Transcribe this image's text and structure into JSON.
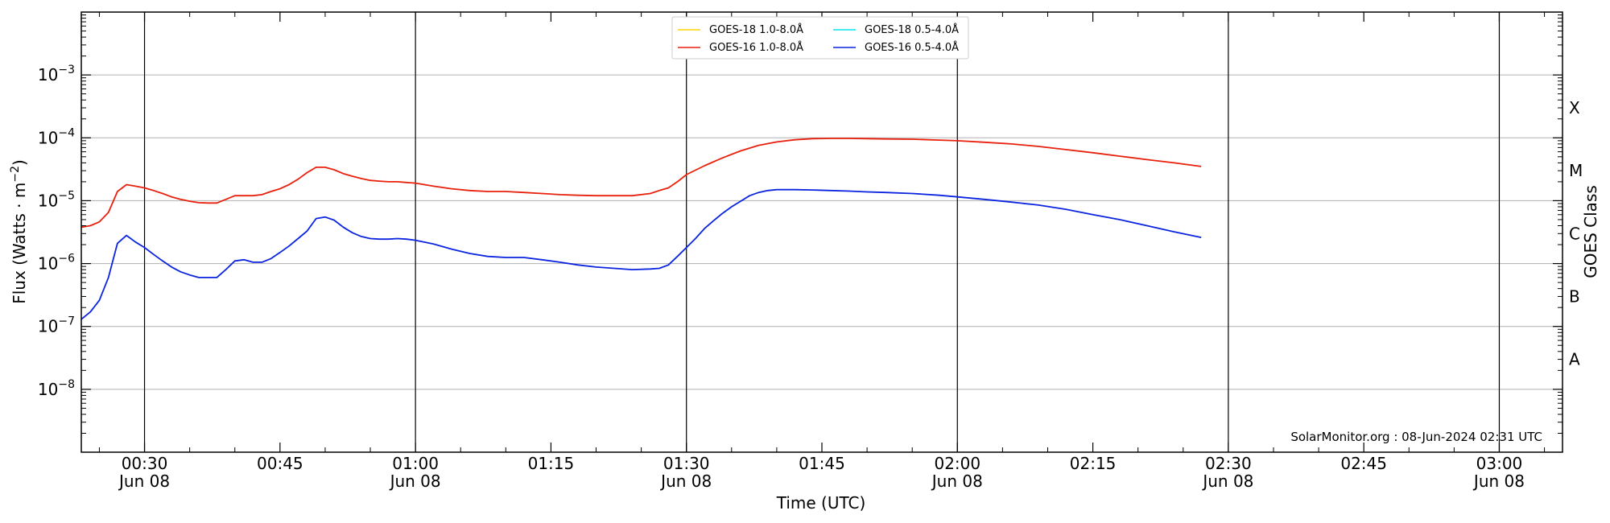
{
  "chart_data": {
    "type": "line",
    "title": "",
    "xlabel": "Time (UTC)",
    "ylabel": "Flux (Watts · m",
    "ylabel_sup": "−2",
    "ylabel_close": ")",
    "y2label": "GOES Class",
    "yscale": "log",
    "ylim": [
      1e-09,
      0.01
    ],
    "xlim": [
      "2024-06-08 00:23",
      "2024-06-08 03:07"
    ],
    "y_ticks": [
      {
        "value": 1e-08,
        "base": "10",
        "exp": "−8"
      },
      {
        "value": 1e-07,
        "base": "10",
        "exp": "−7"
      },
      {
        "value": 1e-06,
        "base": "10",
        "exp": "−6"
      },
      {
        "value": 1e-05,
        "base": "10",
        "exp": "−5"
      },
      {
        "value": 0.0001,
        "base": "10",
        "exp": "−4"
      },
      {
        "value": 0.001,
        "base": "10",
        "exp": "−3"
      }
    ],
    "x_ticks": [
      {
        "time": "00:30",
        "label": "00:30",
        "date": "Jun 08"
      },
      {
        "time": "00:45",
        "label": "00:45",
        "date": ""
      },
      {
        "time": "01:00",
        "label": "01:00",
        "date": "Jun 08"
      },
      {
        "time": "01:15",
        "label": "01:15",
        "date": ""
      },
      {
        "time": "01:30",
        "label": "01:30",
        "date": "Jun 08"
      },
      {
        "time": "01:45",
        "label": "01:45",
        "date": ""
      },
      {
        "time": "02:00",
        "label": "02:00",
        "date": "Jun 08"
      },
      {
        "time": "02:15",
        "label": "02:15",
        "date": ""
      },
      {
        "time": "02:30",
        "label": "02:30",
        "date": "Jun 08"
      },
      {
        "time": "02:45",
        "label": "02:45",
        "date": ""
      },
      {
        "time": "03:00",
        "label": "03:00",
        "date": "Jun 08"
      }
    ],
    "half_hour_markers": [
      "00:30",
      "01:00",
      "01:30",
      "02:00",
      "02:30",
      "03:00"
    ],
    "goes_classes": [
      {
        "label": "A",
        "flux": 3e-08
      },
      {
        "label": "B",
        "flux": 3e-07
      },
      {
        "label": "C",
        "flux": 3e-06
      },
      {
        "label": "M",
        "flux": 3e-05
      },
      {
        "label": "X",
        "flux": 0.0003
      }
    ],
    "grid": true,
    "legend_placement": "top-center",
    "annotation": "SolarMonitor.org : 08-Jun-2024 02:31 UTC",
    "series": [
      {
        "name": "GOES-18 1.0-8.0Å",
        "color": "#ffd400",
        "x": [],
        "y": []
      },
      {
        "name": "GOES-18 0.5-4.0Å",
        "color": "#00e5ee",
        "x": [],
        "y": []
      },
      {
        "name": "GOES-16 1.0-8.0Å",
        "color": "#e8200c",
        "x": [
          "00:23",
          "00:24",
          "00:25",
          "00:26",
          "00:27",
          "00:28",
          "00:29",
          "00:30",
          "00:31",
          "00:32",
          "00:33",
          "00:34",
          "00:35",
          "00:36",
          "00:37",
          "00:38",
          "00:39",
          "00:40",
          "00:41",
          "00:42",
          "00:43",
          "00:44",
          "00:45",
          "00:46",
          "00:47",
          "00:48",
          "00:49",
          "00:50",
          "00:51",
          "00:52",
          "00:53",
          "00:54",
          "00:55",
          "00:56",
          "00:57",
          "00:58",
          "00:59",
          "01:00",
          "01:02",
          "01:04",
          "01:06",
          "01:08",
          "01:10",
          "01:12",
          "01:14",
          "01:16",
          "01:18",
          "01:20",
          "01:22",
          "01:24",
          "01:26",
          "01:27",
          "01:28",
          "01:29",
          "01:30",
          "01:32",
          "01:34",
          "01:36",
          "01:38",
          "01:40",
          "01:42",
          "01:44",
          "01:46",
          "01:48",
          "01:50",
          "01:52",
          "01:55",
          "01:58",
          "02:00",
          "02:03",
          "02:06",
          "02:09",
          "02:12",
          "02:15",
          "02:18",
          "02:21",
          "02:24",
          "02:27"
        ],
        "y": [
          3.8e-06,
          4e-06,
          4.6e-06,
          6.5e-06,
          1.4e-05,
          1.8e-05,
          1.7e-05,
          1.6e-05,
          1.45e-05,
          1.3e-05,
          1.15e-05,
          1.05e-05,
          9.8e-06,
          9.3e-06,
          9.2e-06,
          9.2e-06,
          1.05e-05,
          1.2e-05,
          1.2e-05,
          1.2e-05,
          1.25e-05,
          1.4e-05,
          1.55e-05,
          1.8e-05,
          2.2e-05,
          2.8e-05,
          3.4e-05,
          3.4e-05,
          3.1e-05,
          2.7e-05,
          2.45e-05,
          2.25e-05,
          2.1e-05,
          2.05e-05,
          2e-05,
          2e-05,
          1.95e-05,
          1.9e-05,
          1.7e-05,
          1.55e-05,
          1.45e-05,
          1.4e-05,
          1.4e-05,
          1.35e-05,
          1.3e-05,
          1.25e-05,
          1.22e-05,
          1.2e-05,
          1.2e-05,
          1.2e-05,
          1.3e-05,
          1.45e-05,
          1.6e-05,
          2e-05,
          2.6e-05,
          3.6e-05,
          4.8e-05,
          6.2e-05,
          7.6e-05,
          8.6e-05,
          9.3e-05,
          9.7e-05,
          9.8e-05,
          9.8e-05,
          9.7e-05,
          9.6e-05,
          9.5e-05,
          9.2e-05,
          9e-05,
          8.5e-05,
          8e-05,
          7.3e-05,
          6.5e-05,
          5.8e-05,
          5.1e-05,
          4.5e-05,
          4e-05,
          3.5e-05
        ]
      },
      {
        "name": "GOES-16 0.5-4.0Å",
        "color": "#0a24e0",
        "x": [
          "00:23",
          "00:24",
          "00:25",
          "00:26",
          "00:27",
          "00:28",
          "00:29",
          "00:30",
          "00:31",
          "00:32",
          "00:33",
          "00:34",
          "00:35",
          "00:36",
          "00:37",
          "00:38",
          "00:39",
          "00:40",
          "00:41",
          "00:42",
          "00:43",
          "00:44",
          "00:45",
          "00:46",
          "00:47",
          "00:48",
          "00:49",
          "00:50",
          "00:51",
          "00:52",
          "00:53",
          "00:54",
          "00:55",
          "00:56",
          "00:57",
          "00:58",
          "00:59",
          "01:00",
          "01:02",
          "01:04",
          "01:06",
          "01:08",
          "01:10",
          "01:12",
          "01:14",
          "01:16",
          "01:18",
          "01:20",
          "01:22",
          "01:24",
          "01:26",
          "01:27",
          "01:28",
          "01:29",
          "01:30",
          "01:31",
          "01:32",
          "01:33",
          "01:34",
          "01:35",
          "01:36",
          "01:37",
          "01:38",
          "01:39",
          "01:40",
          "01:42",
          "01:44",
          "01:46",
          "01:48",
          "01:50",
          "01:52",
          "01:55",
          "01:58",
          "02:00",
          "02:03",
          "02:06",
          "02:09",
          "02:12",
          "02:15",
          "02:18",
          "02:21",
          "02:24",
          "02:27"
        ],
        "y": [
          1.3e-07,
          1.7e-07,
          2.6e-07,
          6e-07,
          2.1e-06,
          2.8e-06,
          2.2e-06,
          1.8e-06,
          1.4e-06,
          1.1e-06,
          8.8e-07,
          7.4e-07,
          6.6e-07,
          6e-07,
          6e-07,
          6e-07,
          8e-07,
          1.1e-06,
          1.15e-06,
          1.05e-06,
          1.05e-06,
          1.2e-06,
          1.5e-06,
          1.9e-06,
          2.5e-06,
          3.3e-06,
          5.2e-06,
          5.5e-06,
          4.9e-06,
          3.8e-06,
          3.1e-06,
          2.7e-06,
          2.5e-06,
          2.45e-06,
          2.45e-06,
          2.5e-06,
          2.45e-06,
          2.35e-06,
          2.05e-06,
          1.7e-06,
          1.45e-06,
          1.3e-06,
          1.25e-06,
          1.25e-06,
          1.15e-06,
          1.05e-06,
          9.5e-07,
          8.8e-07,
          8.4e-07,
          8e-07,
          8.2e-07,
          8.4e-07,
          9.5e-07,
          1.3e-06,
          1.8e-06,
          2.5e-06,
          3.6e-06,
          4.8e-06,
          6.3e-06,
          8e-06,
          9.8e-06,
          1.2e-05,
          1.35e-05,
          1.45e-05,
          1.5e-05,
          1.5e-05,
          1.48e-05,
          1.45e-05,
          1.42e-05,
          1.38e-05,
          1.35e-05,
          1.3e-05,
          1.22e-05,
          1.15e-05,
          1.05e-05,
          9.5e-06,
          8.5e-06,
          7.3e-06,
          6e-06,
          5e-06,
          4e-06,
          3.2e-06,
          2.6e-06
        ]
      }
    ]
  }
}
